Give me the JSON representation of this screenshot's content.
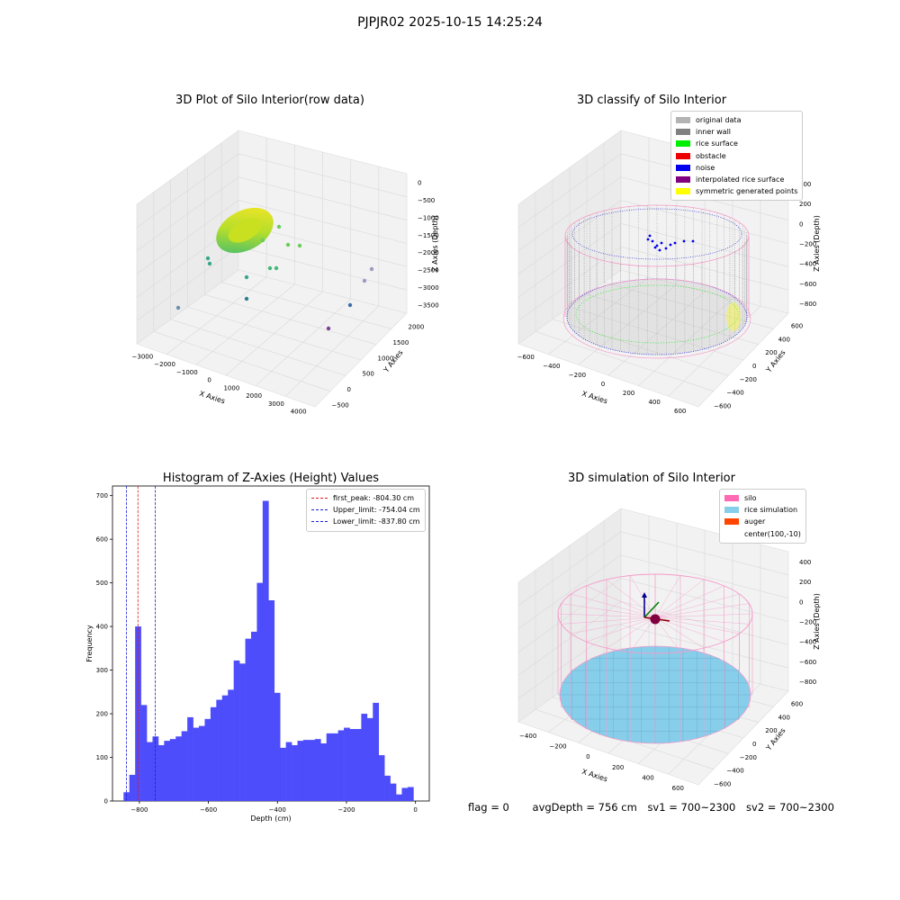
{
  "suptitle": "PJPJR02 2025-10-15 14:25:24",
  "colors": {
    "bar": "#4d4dfb",
    "first_peak": "#e31a1c",
    "limits": "#1f1fd6",
    "pink": "#f59ac9",
    "wall_gray": "#8a8a8a",
    "rice_green": "#22ee22",
    "noise_blue": "#0000ee",
    "rice_sim": "#87ceeb"
  },
  "plots": {
    "raw": {
      "title": "3D Plot of Silo Interior(row data)",
      "xlabel": "X Axies",
      "ylabel": "Y Axies",
      "zlabel": "Z Axies (Depth)",
      "xticks": [
        "−3000",
        "−2000",
        "−1000",
        "0",
        "1000",
        "2000",
        "3000",
        "4000"
      ],
      "yticks": [
        "−500",
        "0",
        "500",
        "1000",
        "1500",
        "2000"
      ],
      "zticks": [
        "0",
        "−500",
        "−1000",
        "−1500",
        "−2000",
        "−2500",
        "−3000",
        "−3500"
      ]
    },
    "classify": {
      "title": "3D classify of Silo Interior",
      "xlabel": "X Axies",
      "ylabel": "Y Axies",
      "zlabel": "Z Axies (Depth)",
      "xticks": [
        "−600",
        "−400",
        "−200",
        "0",
        "200",
        "400",
        "600"
      ],
      "yticks": [
        "−600",
        "−400",
        "−200",
        "0",
        "200",
        "400",
        "600"
      ],
      "zticks": [
        "400",
        "200",
        "0",
        "−200",
        "−400",
        "−600",
        "−800"
      ],
      "zticks_hidden": [
        "00"
      ],
      "legend": [
        {
          "label": "original data",
          "color": "#b3b3b3"
        },
        {
          "label": "inner wall",
          "color": "#808080"
        },
        {
          "label": "rice surface",
          "color": "#00ee00"
        },
        {
          "label": "obstacle",
          "color": "#ee0000"
        },
        {
          "label": "noise",
          "color": "#0000ee"
        },
        {
          "label": "interpolated rice surface",
          "color": "#800080"
        },
        {
          "label": "symmetric generated points",
          "color": "#ffff00"
        }
      ]
    },
    "simulation": {
      "title": "3D simulation of Silo Interior",
      "xlabel": "X Axies",
      "ylabel": "Y Axies",
      "zlabel": "Z Axies (Depth)",
      "xticks": [
        "−400",
        "−200",
        "0",
        "200",
        "400",
        "600"
      ],
      "yticks": [
        "−600",
        "−400",
        "−200",
        "0",
        "200",
        "400",
        "600"
      ],
      "zticks": [
        "400",
        "200",
        "0",
        "−200",
        "−400",
        "−600",
        "−800"
      ],
      "legend": [
        {
          "label": "silo",
          "color": "#ff69b4"
        },
        {
          "label": "rice simulation",
          "color": "#87ceeb"
        },
        {
          "label": "auger",
          "color": "#ff4500"
        },
        {
          "label": "center(100,-10)",
          "color": ""
        }
      ]
    }
  },
  "chart_data": [
    {
      "type": "bar",
      "title": "Histogram of Z-Axies (Height) Values",
      "xlabel": "Depth (cm)",
      "ylabel": "Frequency",
      "xlim": [
        -878,
        40
      ],
      "ylim": [
        0,
        722
      ],
      "xticks": [
        -800,
        -600,
        -400,
        -200,
        0
      ],
      "yticks": [
        0,
        100,
        200,
        300,
        400,
        500,
        600,
        700
      ],
      "bin_width": 16.8,
      "bin_start": -846,
      "values": [
        20,
        60,
        400,
        220,
        135,
        148,
        128,
        138,
        142,
        148,
        160,
        192,
        168,
        172,
        188,
        215,
        232,
        242,
        255,
        322,
        315,
        372,
        388,
        500,
        688,
        460,
        248,
        122,
        135,
        128,
        138,
        140,
        140,
        142,
        132,
        155,
        155,
        162,
        168,
        165,
        165,
        200,
        190,
        225,
        105,
        58,
        40,
        15,
        30,
        32
      ],
      "vlines": [
        {
          "name": "first_peak: -804.30 cm",
          "x": -804.3,
          "color": "#e31a1c"
        },
        {
          "name": "Upper_limit: -754.04 cm",
          "x": -754.04,
          "color": "#1f1fd6"
        },
        {
          "name": "Lower_limit: -837.80 cm",
          "x": -837.8,
          "color": "#1f1fd6"
        }
      ],
      "legend_position": "top-right"
    }
  ],
  "status": {
    "flag": "flag = 0",
    "avg": "avgDepth = 756 cm",
    "sv1": "sv1 = 700~2300",
    "sv2": "sv2 = 700~2300"
  }
}
